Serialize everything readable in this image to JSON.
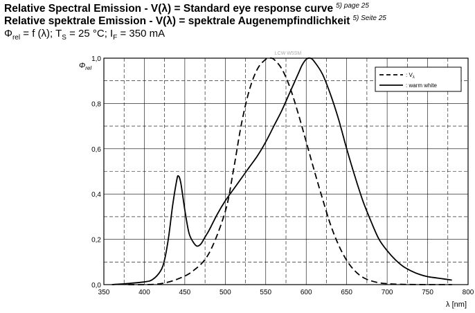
{
  "header": {
    "title_en": "Relative Spectral Emission - V(λ) = Standard eye response curve",
    "title_en_ref": "5) page 25",
    "title_de": "Relative spektrale Emission - V(λ) = spektrale Augenempfindlichkeit",
    "title_de_ref": "5) Seite 25",
    "condition_phi": "Φ",
    "condition_phi_sub": "rel",
    "condition_mid": " = f (λ); T",
    "condition_t_sub": "S",
    "condition_mid2": " = 25 °C; I",
    "condition_i_sub": "F",
    "condition_end": " = 350 mA"
  },
  "chart_data": {
    "type": "line",
    "watermark": "LCW W5SM",
    "ylabel": "Φ",
    "ylabel_sub": "rel",
    "xlabel": "λ [nm]",
    "xlim": [
      350,
      800
    ],
    "ylim": [
      0,
      1.0
    ],
    "x_ticks": [
      350,
      400,
      450,
      500,
      550,
      600,
      650,
      700,
      750,
      800
    ],
    "x_tick_labels": [
      "350",
      "400",
      "450",
      "500",
      "550",
      "600",
      "650",
      "700",
      "750",
      "800"
    ],
    "y_ticks": [
      0,
      0.2,
      0.4,
      0.6,
      0.8,
      1.0
    ],
    "y_tick_labels": [
      "0,0",
      "0,2",
      "0,4",
      "0,6",
      "0,8",
      "1,0"
    ],
    "grid": true,
    "legend_position": "top-right",
    "series": [
      {
        "name": "V",
        "name_sub": "λ",
        "legend_label": ": V",
        "style": "dashed",
        "x": [
          380,
          400,
          420,
          440,
          460,
          480,
          500,
          510,
          520,
          530,
          540,
          550,
          555,
          560,
          570,
          580,
          590,
          600,
          610,
          620,
          630,
          640,
          650,
          660,
          670,
          680,
          690,
          700,
          720,
          750,
          780
        ],
        "y": [
          0.0,
          0.0,
          0.004,
          0.023,
          0.06,
          0.139,
          0.323,
          0.503,
          0.71,
          0.862,
          0.954,
          0.995,
          1.0,
          0.995,
          0.952,
          0.87,
          0.757,
          0.631,
          0.503,
          0.381,
          0.265,
          0.175,
          0.107,
          0.061,
          0.032,
          0.017,
          0.008,
          0.004,
          0.001,
          0.0,
          0.0
        ]
      },
      {
        "name": "warm white",
        "legend_label": ": warm white",
        "style": "solid",
        "x": [
          360,
          380,
          400,
          410,
          420,
          425,
          430,
          435,
          440,
          442,
          445,
          450,
          455,
          460,
          465,
          470,
          475,
          480,
          490,
          500,
          510,
          520,
          530,
          540,
          550,
          560,
          570,
          580,
          590,
          595,
          600,
          605,
          610,
          620,
          630,
          640,
          650,
          660,
          670,
          680,
          690,
          700,
          710,
          720,
          730,
          740,
          750,
          760,
          770,
          780
        ],
        "y": [
          0.0,
          0.005,
          0.012,
          0.022,
          0.06,
          0.11,
          0.21,
          0.35,
          0.46,
          0.48,
          0.45,
          0.33,
          0.23,
          0.19,
          0.17,
          0.18,
          0.21,
          0.24,
          0.31,
          0.37,
          0.42,
          0.47,
          0.52,
          0.57,
          0.63,
          0.7,
          0.77,
          0.85,
          0.93,
          0.97,
          0.995,
          1.0,
          0.985,
          0.93,
          0.84,
          0.73,
          0.6,
          0.48,
          0.37,
          0.28,
          0.2,
          0.15,
          0.11,
          0.08,
          0.06,
          0.045,
          0.035,
          0.03,
          0.025,
          0.02
        ]
      }
    ]
  }
}
